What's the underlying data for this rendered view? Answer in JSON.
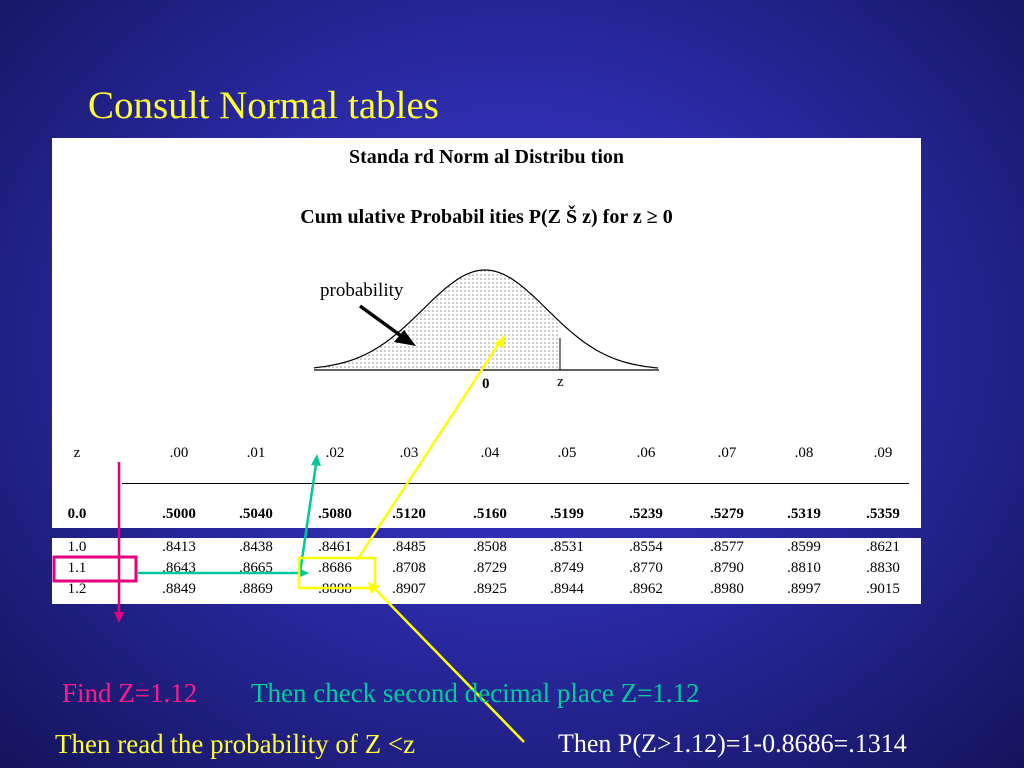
{
  "slide": {
    "title": "Consult Normal tables"
  },
  "table_header": {
    "title": "Standa rd Norm al Distribu tion",
    "subtitle": "Cum ulative Probabil ities P(Z Š z) for z ≥ 0"
  },
  "curve": {
    "label_probability": "probability",
    "label_zero": "0",
    "label_z": "z"
  },
  "table": {
    "columns": [
      "z",
      ".00",
      ".01",
      ".02",
      ".03",
      ".04",
      ".05",
      ".06",
      ".07",
      ".08",
      ".09"
    ],
    "first_row": [
      "0.0",
      ".5000",
      ".5040",
      ".5080",
      ".5120",
      ".5160",
      ".5199",
      ".5239",
      ".5279",
      ".5319",
      ".5359"
    ],
    "rows": [
      [
        "1.0",
        ".8413",
        ".8438",
        ".8461",
        ".8485",
        ".8508",
        ".8531",
        ".8554",
        ".8577",
        ".8599",
        ".8621"
      ],
      [
        "1.1",
        ".8643",
        ".8665",
        ".8686",
        ".8708",
        ".8729",
        ".8749",
        ".8770",
        ".8790",
        ".8810",
        ".8830"
      ],
      [
        "1.2",
        ".8849",
        ".8869",
        ".8888",
        ".8907",
        ".8925",
        ".8944",
        ".8962",
        ".8980",
        ".8997",
        ".9015"
      ]
    ]
  },
  "annotations": {
    "find_z": "Find Z=1.12",
    "check_decimal": "Then check second decimal place Z=1.12",
    "read_probability": "Then read the probability of Z <z",
    "result": "Then P(Z>1.12)=1-0.8686=.1314"
  },
  "colors": {
    "title": "#ffff33",
    "find": "#ff1a8c",
    "check": "#00cc99",
    "read": "#ffff33",
    "result": "#ffffff",
    "highlight_row": "#e6007e",
    "highlight_col": "#00c89a",
    "highlight_cell": "#ffff00"
  }
}
